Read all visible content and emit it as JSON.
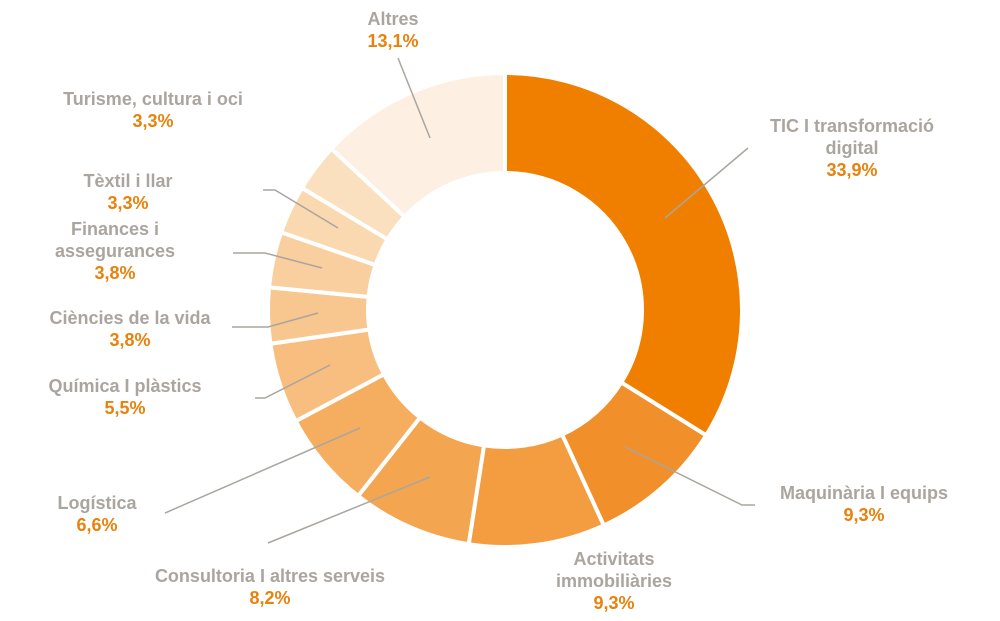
{
  "chart_data": {
    "type": "donut",
    "categories": [
      "TIC I transformació digital",
      "Maquinària I equips",
      "Activitats immobiliàries",
      "Consultoria I altres serveis",
      "Logística",
      "Química I plàstics",
      "Ciències de la vida",
      "Finances i assegurances",
      "Tèxtil i llar",
      "Turisme, cultura i oci",
      "Altres"
    ],
    "values": [
      33.9,
      9.3,
      9.3,
      8.2,
      6.6,
      5.5,
      3.8,
      3.8,
      3.3,
      3.3,
      13.1
    ],
    "value_labels": [
      "33,9%",
      "9,3%",
      "9,3%",
      "8,2%",
      "6,6%",
      "5,5%",
      "3,8%",
      "3,8%",
      "3,3%",
      "3,3%",
      "13,1%"
    ],
    "colors": [
      "#f07f00",
      "#f18f2a",
      "#f39c40",
      "#f4a550",
      "#f5ae5f",
      "#f7be80",
      "#f8c68f",
      "#f9cf9f",
      "#fad8b0",
      "#fbe0c0",
      "#fdf0e2"
    ]
  }
}
